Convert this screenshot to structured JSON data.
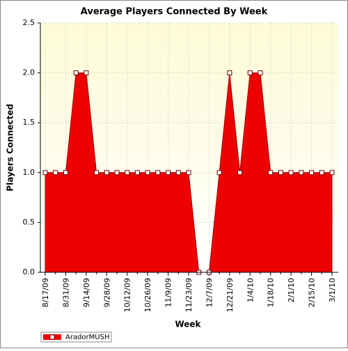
{
  "chart_data": {
    "type": "area",
    "title": "Average Players Connected By Week",
    "x_label": "Week",
    "y_label": "Players Connected",
    "categories": [
      "8/17/09",
      null,
      "8/31/09",
      null,
      "9/14/09",
      null,
      "9/28/09",
      null,
      "10/12/09",
      null,
      "10/26/09",
      null,
      "11/9/09",
      null,
      "11/23/09",
      null,
      "12/7/09",
      null,
      "12/21/09",
      null,
      "1/4/10",
      null,
      "1/18/10",
      null,
      "2/1/10",
      null,
      "2/15/10",
      null,
      "3/1/10"
    ],
    "series": [
      {
        "name": "AradorMUSH",
        "color": "#ee0000",
        "values": [
          1.0,
          1.0,
          1.0,
          2.0,
          2.0,
          1.0,
          1.0,
          1.0,
          1.0,
          1.0,
          1.0,
          1.0,
          1.0,
          1.0,
          1.0,
          0,
          0,
          1.0,
          2.0,
          1.0,
          2.0,
          2.0,
          1.0,
          1.0,
          1.0,
          1.0,
          1.0,
          1.0,
          1.0
        ]
      }
    ],
    "ylim": [
      0,
      2.5
    ],
    "yticks": [
      {
        "value": 0,
        "label": "0.0"
      },
      0.5,
      {
        "value": 1,
        "label": "1.0"
      },
      1.5,
      {
        "value": 2,
        "label": "2.0"
      },
      2.5
    ],
    "grid": true,
    "legend": "bottom-left"
  }
}
